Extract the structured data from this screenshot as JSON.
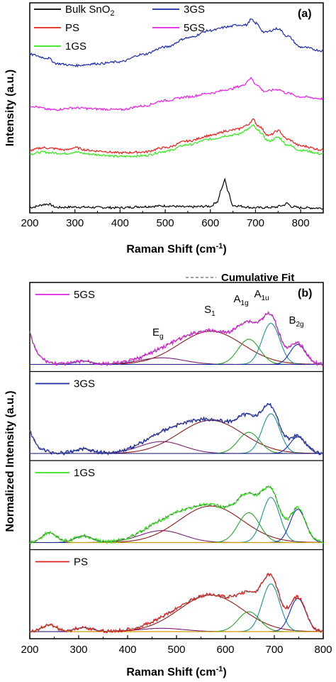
{
  "chart_data": [
    {
      "type": "line",
      "panel": "(a)",
      "xlabel": "Raman Shift (cm",
      "xlabel_sup": "-1",
      "xlabel_end": ")",
      "ylabel": "Intensity (a.u.)",
      "xlim": [
        200,
        850
      ],
      "xticks": [
        200,
        300,
        400,
        500,
        600,
        700,
        800
      ],
      "yticks": false,
      "legend": [
        {
          "name": "Bulk SnO",
          "sub": "2",
          "color": "#000000"
        },
        {
          "name": "PS",
          "sub": "",
          "color": "#e0201b"
        },
        {
          "name": "1GS",
          "sub": "",
          "color": "#33e51a"
        },
        {
          "name": "3GS",
          "sub": "",
          "color": "#1a2aa6"
        },
        {
          "name": "5GS",
          "sub": "",
          "color": "#e020e0"
        }
      ],
      "series": [
        {
          "name": "Bulk SnO2",
          "color": "#000000",
          "offset": 0.0,
          "x": [
            200,
            240,
            260,
            300,
            350,
            400,
            450,
            500,
            550,
            600,
            615,
            625,
            632,
            640,
            650,
            700,
            740,
            760,
            770,
            780,
            800,
            850
          ],
          "y": [
            0.05,
            0.14,
            0.05,
            0.06,
            0.05,
            0.04,
            0.07,
            0.09,
            0.06,
            0.08,
            0.2,
            0.55,
            0.8,
            0.45,
            0.1,
            0.04,
            0.05,
            0.1,
            0.16,
            0.07,
            0.04,
            0.03
          ]
        },
        {
          "name": "1GS",
          "color": "#33e51a",
          "offset": 1.45,
          "x": [
            200,
            230,
            250,
            280,
            300,
            330,
            350,
            400,
            450,
            500,
            550,
            600,
            640,
            660,
            680,
            695,
            705,
            730,
            750,
            770,
            800,
            850
          ],
          "y": [
            0.05,
            0.1,
            0.08,
            0.06,
            0.1,
            0.05,
            0.03,
            -0.02,
            0.0,
            0.12,
            0.3,
            0.45,
            0.55,
            0.58,
            0.7,
            0.82,
            0.68,
            0.4,
            0.5,
            0.3,
            0.15,
            0.05
          ]
        },
        {
          "name": "PS",
          "color": "#e0201b",
          "offset": 1.55,
          "x": [
            200,
            230,
            250,
            280,
            300,
            330,
            350,
            400,
            450,
            500,
            550,
            600,
            640,
            660,
            680,
            695,
            705,
            730,
            750,
            770,
            800,
            850
          ],
          "y": [
            0.05,
            0.12,
            0.1,
            0.06,
            0.12,
            0.05,
            0.03,
            -0.02,
            0.0,
            0.12,
            0.3,
            0.45,
            0.58,
            0.62,
            0.72,
            0.88,
            0.72,
            0.45,
            0.58,
            0.35,
            0.17,
            0.06
          ]
        },
        {
          "name": "5GS",
          "color": "#e020e0",
          "offset": 2.7,
          "x": [
            200,
            250,
            300,
            350,
            400,
            450,
            500,
            550,
            600,
            640,
            670,
            690,
            700,
            720,
            750,
            770,
            800,
            850
          ],
          "y": [
            0.1,
            0.0,
            0.05,
            0.02,
            0.0,
            0.1,
            0.25,
            0.35,
            0.45,
            0.55,
            0.65,
            0.85,
            0.7,
            0.5,
            0.55,
            0.45,
            0.35,
            0.3
          ]
        },
        {
          "name": "3GS",
          "color": "#1a2aa6",
          "offset": 3.9,
          "x": [
            200,
            240,
            260,
            300,
            350,
            400,
            450,
            500,
            550,
            600,
            640,
            660,
            680,
            690,
            700,
            720,
            750,
            770,
            800,
            850
          ],
          "y": [
            0.3,
            0.2,
            0.05,
            0.0,
            0.05,
            0.1,
            0.3,
            0.5,
            0.75,
            0.95,
            1.05,
            1.1,
            1.1,
            1.25,
            1.15,
            0.9,
            1.0,
            0.8,
            0.5,
            0.4
          ]
        }
      ]
    },
    {
      "type": "line",
      "panel": "(b)",
      "xlabel": "Raman Shift (cm",
      "xlabel_sup": "-1",
      "xlabel_end": ")",
      "ylabel": "Normalized Intensity (a.u.)",
      "xlim": [
        200,
        800
      ],
      "xticks": [
        200,
        300,
        400,
        500,
        600,
        700,
        800
      ],
      "fit_label": "Cumulative Fit",
      "peak_labels": [
        {
          "text": "E",
          "sub": "g",
          "x": 462
        },
        {
          "text": "S",
          "sub": "1",
          "x": 568
        },
        {
          "text": "A",
          "sub": "1g",
          "x": 632
        },
        {
          "text": "A",
          "sub": "1u",
          "x": 674
        },
        {
          "text": "B",
          "sub": "2g",
          "x": 745
        }
      ],
      "fit_components": [
        {
          "center": 470,
          "width": 45,
          "color": "#7a1f7a"
        },
        {
          "center": 570,
          "width": 65,
          "color": "#8b1a1a"
        },
        {
          "center": 648,
          "width": 22,
          "color": "#2ca02c"
        },
        {
          "center": 693,
          "width": 18,
          "color": "#1f8f8f"
        },
        {
          "center": 748,
          "width": 16,
          "color": "#1a2aa6"
        },
        {
          "center": 310,
          "width": 18,
          "color": "#1a2aa6"
        },
        {
          "center": 240,
          "width": 15,
          "color": "#c8a000"
        }
      ],
      "subpanels": [
        {
          "name": "5GS",
          "color": "#e020e0",
          "amps": [
            0.1,
            0.5,
            0.38,
            0.62,
            0.3,
            0.05,
            0.0
          ],
          "base": [
            0.5,
            0.0
          ]
        },
        {
          "name": "3GS",
          "color": "#1a2aa6",
          "amps": [
            0.18,
            0.5,
            0.32,
            0.6,
            0.25,
            0.07,
            0.0
          ],
          "base": [
            0.35,
            0.0
          ]
        },
        {
          "name": "1GS",
          "color": "#33e51a",
          "amps": [
            0.18,
            0.55,
            0.45,
            0.68,
            0.5,
            0.1,
            0.15
          ],
          "base": [
            0.0,
            0.0
          ]
        },
        {
          "name": "PS",
          "color": "#e0201b",
          "amps": [
            0.05,
            0.55,
            0.3,
            0.72,
            0.5,
            0.06,
            0.1
          ],
          "base": [
            0.0,
            0.0
          ]
        }
      ]
    }
  ]
}
